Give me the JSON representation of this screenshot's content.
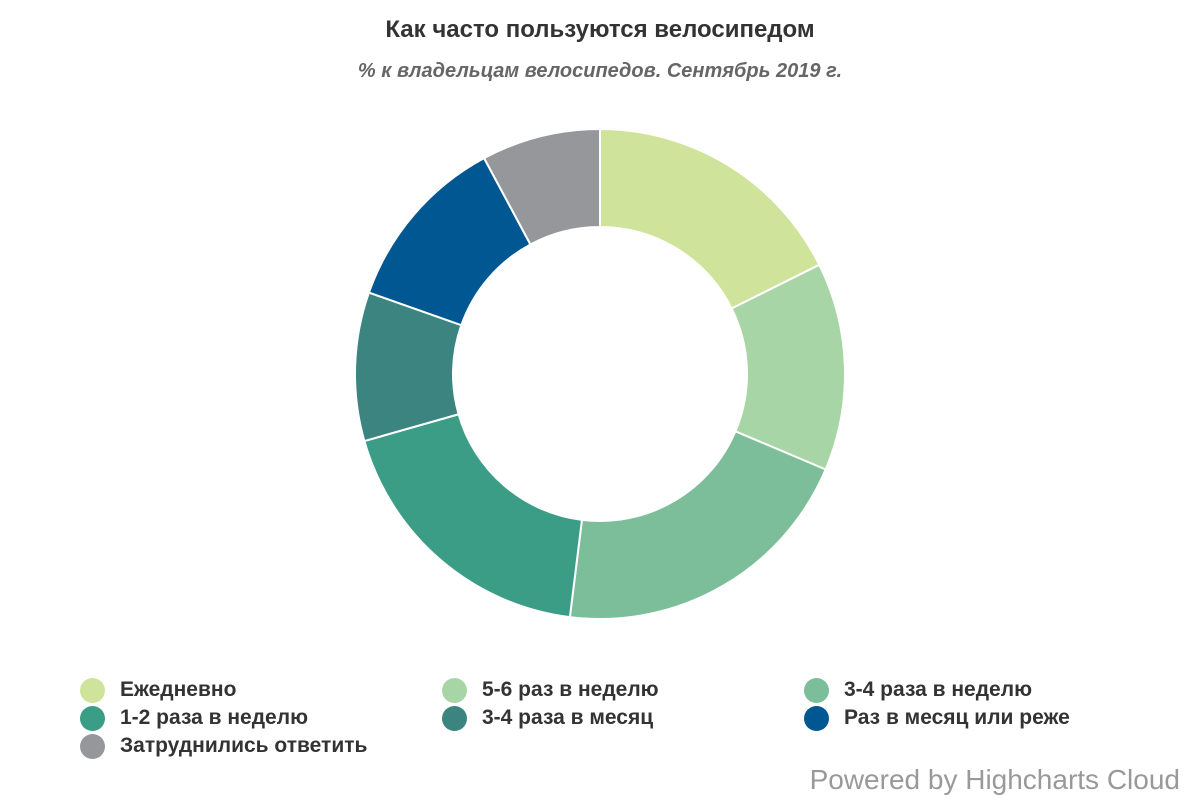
{
  "chart_data": {
    "type": "pie",
    "title": "Как часто пользуются велосипедом",
    "subtitle": "% к владельцам велосипедов. Сентябрь 2019 г.",
    "donut": true,
    "legend_position": "bottom",
    "series": [
      {
        "data": [
          {
            "name": "Ежедневно",
            "value": 18,
            "color": "#cfe39b"
          },
          {
            "name": "5-6 раз в неделю",
            "value": 14,
            "color": "#a8d5a6"
          },
          {
            "name": "3-4 раза в неделю",
            "value": 21,
            "color": "#7cbe99"
          },
          {
            "name": "1-2 раза в неделю",
            "value": 19,
            "color": "#3c9d87"
          },
          {
            "name": "3-4 раза в месяц",
            "value": 10,
            "color": "#3b8480"
          },
          {
            "name": "Раз в месяц или реже",
            "value": 12,
            "color": "#015791"
          },
          {
            "name": "Затруднились ответить",
            "value": 8,
            "color": "#96979a"
          }
        ]
      }
    ]
  },
  "legend": {
    "rows": [
      [
        {
          "label": "Ежедневно",
          "color": "#cfe39b"
        },
        {
          "label": "5-6 раз в неделю",
          "color": "#a8d5a6"
        },
        {
          "label": "3-4 раза в неделю",
          "color": "#7cbe99"
        }
      ],
      [
        {
          "label": "1-2 раза в неделю",
          "color": "#3c9d87"
        },
        {
          "label": "3-4 раза в месяц",
          "color": "#3b8480"
        },
        {
          "label": "Раз в месяц или реже",
          "color": "#015791"
        }
      ],
      [
        {
          "label": "Затруднились ответить",
          "color": "#96979a"
        }
      ]
    ]
  },
  "credits": "Powered by Highcharts Cloud"
}
